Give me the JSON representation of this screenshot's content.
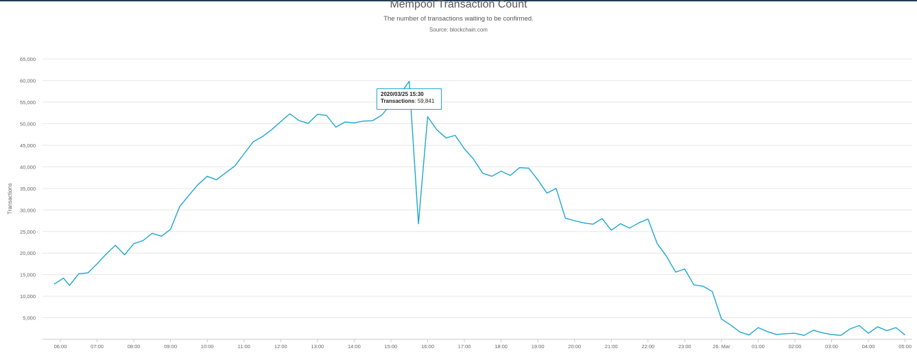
{
  "title": "Mempool Transaction Count",
  "subtitle": "The number of transactions waiting to be confirmed.",
  "source": "Source: blockchain.com",
  "tooltip": {
    "date": "2020/03/25 15:30",
    "label": "Transactions",
    "value": "59,841"
  },
  "colors": {
    "line": "#1ba6cf",
    "grid": "#e6e6e6",
    "axis_text": "#666666",
    "top_bar": "#1f3b57"
  },
  "chart_data": {
    "type": "line",
    "title": "Mempool Transaction Count",
    "subtitle": "The number of transactions waiting to be confirmed.",
    "ylabel": "Transactions",
    "xlabel": "",
    "ylim": [
      0,
      68000
    ],
    "y_ticks": [
      "5,000",
      "10,000",
      "15,000",
      "20,000",
      "25,000",
      "30,000",
      "35,000",
      "40,000",
      "45,000",
      "50,000",
      "55,000",
      "60,000",
      "65,000"
    ],
    "y_tick_values": [
      5000,
      10000,
      15000,
      20000,
      25000,
      30000,
      35000,
      40000,
      45000,
      50000,
      55000,
      60000,
      65000
    ],
    "x_ticks": [
      "06:00",
      "07:00",
      "08:00",
      "09:00",
      "10:00",
      "11:00",
      "12:00",
      "13:00",
      "14:00",
      "15:00",
      "16:00",
      "17:00",
      "18:00",
      "19:00",
      "20:00",
      "21:00",
      "22:00",
      "23:00",
      "26. Mar",
      "01:00",
      "02:00",
      "03:00",
      "04:00",
      "05:00"
    ],
    "grid": true,
    "legend": "none",
    "series": [
      {
        "x": [
          "2020-03-25 05:50",
          "2020-03-25 06:05",
          "2020-03-25 06:15",
          "2020-03-25 06:30",
          "2020-03-25 06:45",
          "2020-03-25 07:00",
          "2020-03-25 07:15",
          "2020-03-25 07:30",
          "2020-03-25 07:45",
          "2020-03-25 08:00",
          "2020-03-25 08:15",
          "2020-03-25 08:30",
          "2020-03-25 08:45",
          "2020-03-25 09:00",
          "2020-03-25 09:15",
          "2020-03-25 09:30",
          "2020-03-25 09:45",
          "2020-03-25 10:00",
          "2020-03-25 10:15",
          "2020-03-25 10:30",
          "2020-03-25 10:45",
          "2020-03-25 11:00",
          "2020-03-25 11:15",
          "2020-03-25 11:30",
          "2020-03-25 11:45",
          "2020-03-25 12:00",
          "2020-03-25 12:15",
          "2020-03-25 12:30",
          "2020-03-25 12:45",
          "2020-03-25 13:00",
          "2020-03-25 13:15",
          "2020-03-25 13:30",
          "2020-03-25 13:45",
          "2020-03-25 14:00",
          "2020-03-25 14:15",
          "2020-03-25 14:30",
          "2020-03-25 14:45",
          "2020-03-25 15:00",
          "2020-03-25 15:15",
          "2020-03-25 15:30",
          "2020-03-25 15:45",
          "2020-03-25 16:00",
          "2020-03-25 16:15",
          "2020-03-25 16:30",
          "2020-03-25 16:45",
          "2020-03-25 17:00",
          "2020-03-25 17:15",
          "2020-03-25 17:30",
          "2020-03-25 17:45",
          "2020-03-25 18:00",
          "2020-03-25 18:15",
          "2020-03-25 18:30",
          "2020-03-25 18:45",
          "2020-03-25 19:00",
          "2020-03-25 19:15",
          "2020-03-25 19:30",
          "2020-03-25 19:45",
          "2020-03-25 20:00",
          "2020-03-25 20:15",
          "2020-03-25 20:30",
          "2020-03-25 20:45",
          "2020-03-25 21:00",
          "2020-03-25 21:15",
          "2020-03-25 21:30",
          "2020-03-25 21:45",
          "2020-03-25 22:00",
          "2020-03-25 22:15",
          "2020-03-25 22:30",
          "2020-03-25 22:45",
          "2020-03-25 23:00",
          "2020-03-25 23:15",
          "2020-03-25 23:30",
          "2020-03-25 23:45",
          "2020-03-26 00:00",
          "2020-03-26 00:15",
          "2020-03-26 00:30",
          "2020-03-26 00:45",
          "2020-03-26 01:00",
          "2020-03-26 01:15",
          "2020-03-26 01:30",
          "2020-03-26 01:45",
          "2020-03-26 02:00",
          "2020-03-26 02:15",
          "2020-03-26 02:30",
          "2020-03-26 02:45",
          "2020-03-26 03:00",
          "2020-03-26 03:15",
          "2020-03-26 03:30",
          "2020-03-26 03:45",
          "2020-03-26 04:00",
          "2020-03-26 04:15",
          "2020-03-26 04:30",
          "2020-03-26 04:45",
          "2020-03-26 05:00"
        ],
        "values": [
          12800,
          14200,
          12500,
          15200,
          15400,
          17500,
          19800,
          21800,
          19600,
          22200,
          22900,
          24600,
          23900,
          25500,
          30800,
          33400,
          35900,
          37800,
          37000,
          38600,
          40200,
          43000,
          45800,
          47000,
          48600,
          50500,
          52300,
          50700,
          50100,
          52200,
          51900,
          49200,
          50400,
          50200,
          50600,
          50700,
          52000,
          54500,
          56900,
          59841,
          26800,
          51600,
          48600,
          46700,
          47300,
          44200,
          41800,
          38500,
          37800,
          39000,
          38000,
          39800,
          39700,
          37000,
          33900,
          35000,
          28100,
          27500,
          27000,
          26700,
          28000,
          25300,
          26800,
          25800,
          27000,
          27900,
          22200,
          19300,
          15600,
          16300,
          12600,
          12300,
          11100,
          4700,
          3300,
          1700,
          1000,
          2700,
          1800,
          1100,
          1300,
          1400,
          900,
          2100,
          1500,
          1100,
          900,
          2400,
          3200,
          1400,
          2900,
          2000,
          2700,
          1000
        ]
      }
    ]
  }
}
